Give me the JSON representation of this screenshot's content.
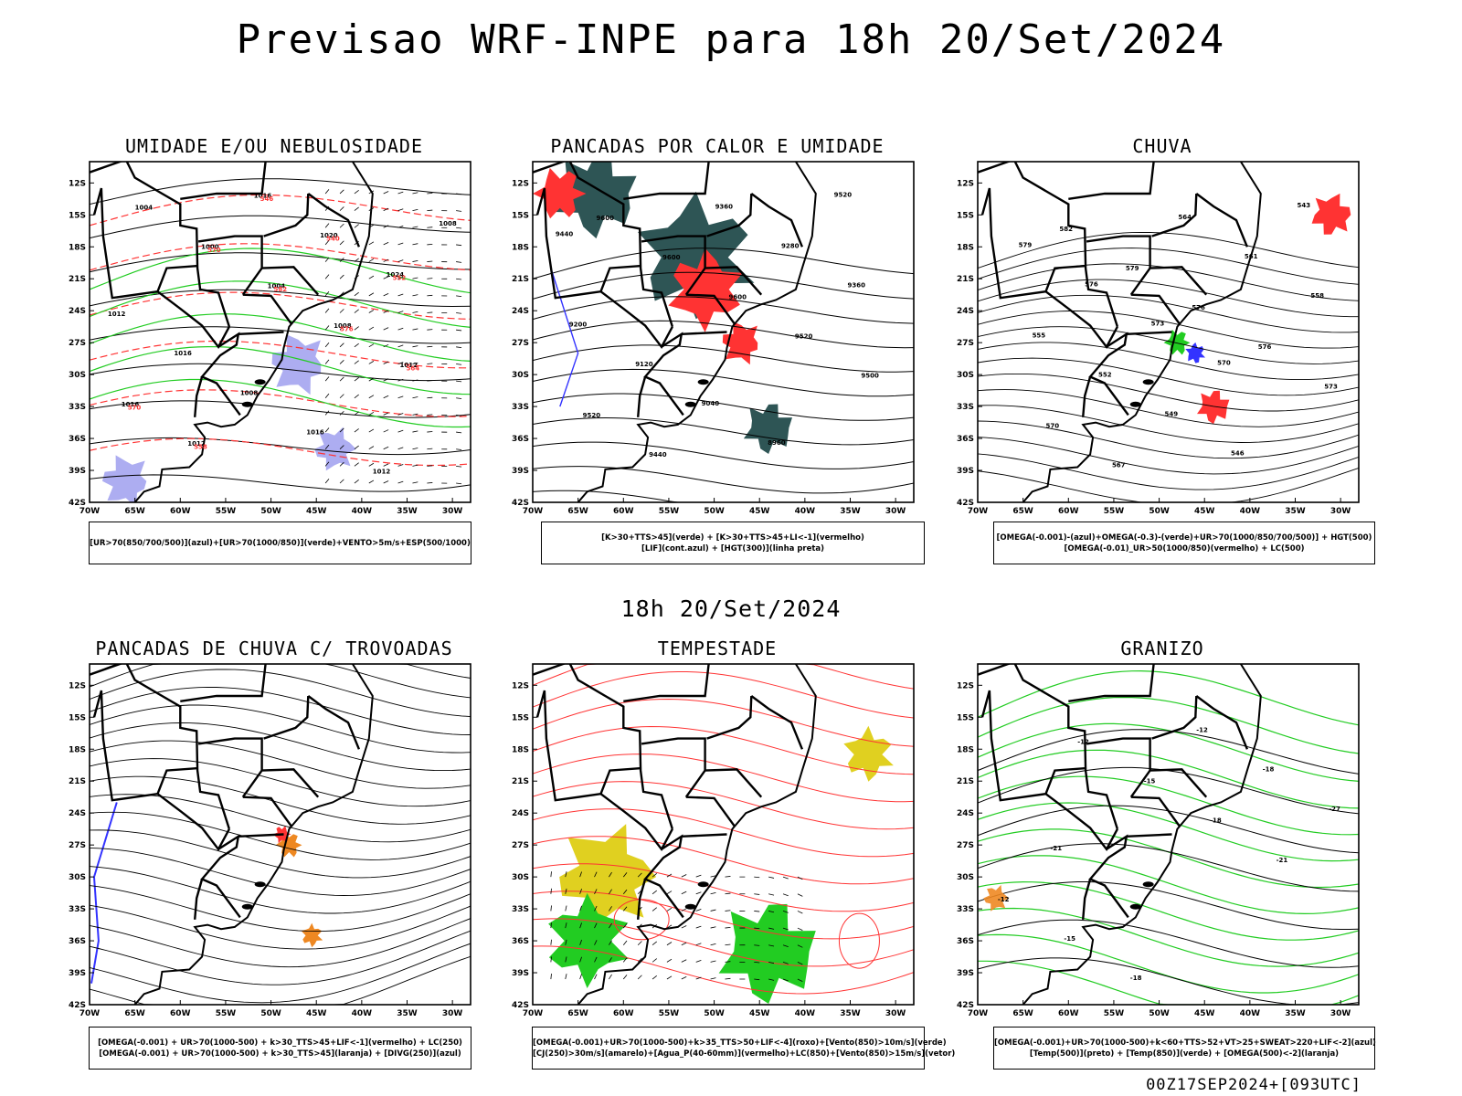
{
  "main_title": "Previsao WRF-INPE  para 18h 20/Set/2024",
  "mid_title": "18h 20/Set/2024",
  "footer": "00Z17SEP2024+[093UTC]",
  "axes": {
    "y_labels": [
      "12S",
      "15S",
      "18S",
      "21S",
      "24S",
      "27S",
      "30S",
      "33S",
      "36S",
      "39S",
      "42S"
    ],
    "x_labels": [
      "70W",
      "65W",
      "60W",
      "55W",
      "50W",
      "45W",
      "40W",
      "35W",
      "30W"
    ]
  },
  "colors": {
    "red": "#ff3333",
    "blue": "#3333ff",
    "green": "#22cc22",
    "lightblue": "#9999ee",
    "darkteal": "#2e5555",
    "orange": "#ee8822",
    "yellow": "#e0d020",
    "black": "#000000"
  },
  "panels": [
    {
      "id": "umidade",
      "title": "UMIDADE E/OU NEBULOSIDADE",
      "legend": [
        "[UR>70(850/700/500)](azul)+[UR>70(1000/850)](verde)+VENTO>5m/s+ESP(500/1000)"
      ],
      "contour_labels": [
        "1004",
        "1000",
        "1004",
        "1008",
        "1012",
        "1016",
        "1012",
        "1016",
        "1020",
        "1024",
        "1012",
        "1016",
        "1008",
        "1016",
        "1012",
        "1008"
      ],
      "red_labels": [
        "570",
        "582",
        "576",
        "564",
        "570",
        "558",
        "546",
        "540",
        "552"
      ]
    },
    {
      "id": "pancadas_calor",
      "title": "PANCADAS POR CALOR E UMIDADE",
      "legend": [
        "[K>30+TTS>45](verde) + [K>30+TTS>45+LI<-1](vermelho)",
        "[LIF](cont.azul) + [HGT(300)](linha preta)"
      ],
      "contour_labels": [
        "9600",
        "9600",
        "9600",
        "9520",
        "9500",
        "9520",
        "9440",
        "9360",
        "9280",
        "9360",
        "9200",
        "9120",
        "9040",
        "8960",
        "9520",
        "9440"
      ]
    },
    {
      "id": "chuva",
      "title": "CHUVA",
      "legend": [
        "[OMEGA(-0.001)-(azul)+OMEGA(-0.3)-(verde)+UR>70(1000/850/700/500)] + HGT(500)",
        "[OMEGA(-0.01)_UR>50(1000/850)(vermelho) + LC(500)"
      ],
      "contour_labels": [
        "582",
        "579",
        "576",
        "576",
        "573",
        "570",
        "567",
        "564",
        "561",
        "558",
        "555",
        "552",
        "549",
        "546",
        "543",
        "579",
        "576",
        "573",
        "570"
      ]
    },
    {
      "id": "trovoadas",
      "title": "PANCADAS DE CHUVA C/ TROVOADAS",
      "legend": [
        "[OMEGA(-0.001) + UR>70(1000-500) + k>30_TTS>45+LIF<-1](vermelho) + LC(250)",
        "[OMEGA(-0.001) + UR>70(1000-500) + k>30_TTS>45](laranja) + [DIVG(250)](azul)"
      ]
    },
    {
      "id": "tempestade",
      "title": "TEMPESTADE",
      "legend": [
        "[OMEGA(-0.001)+UR>70(1000-500)+k>35_TTS>50+LIF<-4](roxo)+[Vento(850)>10m/s](verde)",
        "[CJ(250)>30m/s](amarelo)+[Agua_P(40-60mm)](vermelho)+LC(850)+[Vento(850)>15m/s](vetor)"
      ]
    },
    {
      "id": "granizo",
      "title": "GRANIZO",
      "legend": [
        "[OMEGA(-0.001)+UR>70(1000-500)+k<60+TTS>52+VT>25+SWEAT>220+LIF<-2](azul)",
        "[Temp(500)](preto) + [Temp(850)](verde) + [OMEGA(500)<-2](laranja)"
      ],
      "contour_labels": [
        "-12",
        "-15",
        "-18",
        "-21",
        "-12",
        "-15",
        "-18",
        "-12",
        "-18",
        "-27",
        "-21"
      ]
    }
  ]
}
